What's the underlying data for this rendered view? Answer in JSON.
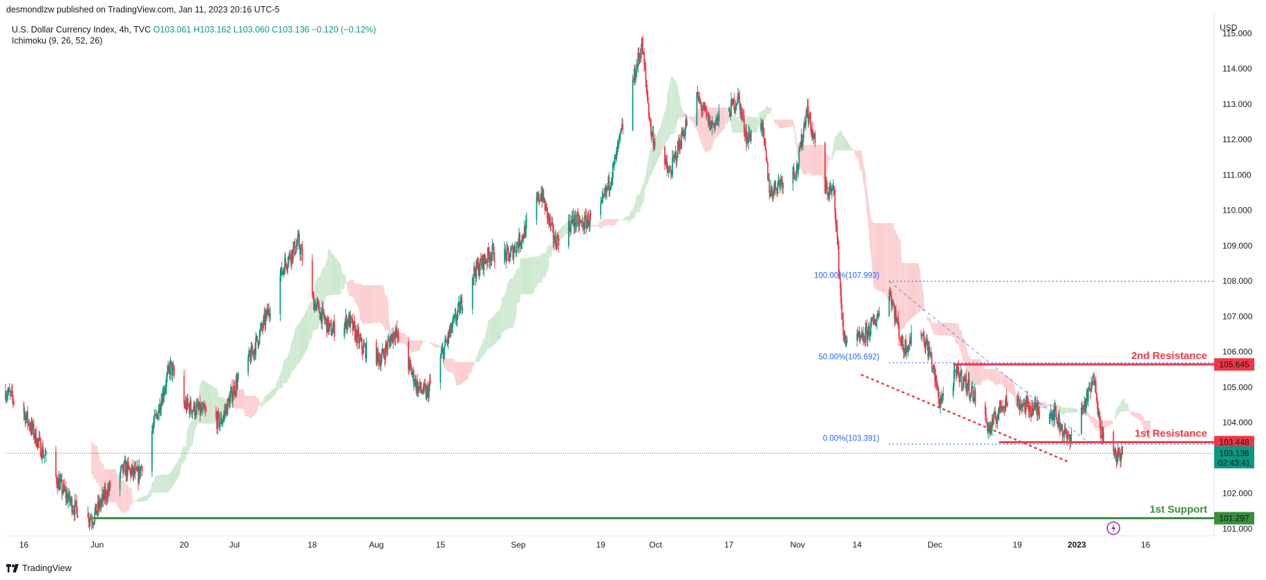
{
  "header": {
    "publisher_line": "desmondlzw published on TradingView.com, Jan 11, 2023 20:16 UTC-5"
  },
  "legend": {
    "symbol_line": "U.S. Dollar Currency Index, 4h, TVC",
    "ohlc": "O103.061  H103.162  L103.060  C103.136  −0.120 (−0.12%)",
    "indicator": "Ichimoku (9, 26, 52, 26)"
  },
  "footer": {
    "brand": "TradingView"
  },
  "chart_data": {
    "type": "candlestick",
    "currency": "USD",
    "ylim": [
      100.8,
      115.4
    ],
    "y_ticks": [
      101,
      102,
      103,
      104,
      105,
      106,
      107,
      108,
      109,
      110,
      111,
      112,
      113,
      114,
      115
    ],
    "y_tick_labels": [
      "101.000",
      "102.000",
      "103.000",
      "104.000",
      "105.000",
      "106.000",
      "107.000",
      "108.000",
      "109.000",
      "110.000",
      "111.000",
      "112.000",
      "113.000",
      "114.000",
      "115.000"
    ],
    "x_tick_labels": [
      "16",
      "Jun",
      "20",
      "Jul",
      "18",
      "Aug",
      "15",
      "Sep",
      "19",
      "Oct",
      "17",
      "Nov",
      "14",
      "Dec",
      "19",
      "2023",
      "16"
    ],
    "x_tick_dates": [
      "2022-05-16",
      "2022-06-01",
      "2022-06-20",
      "2022-07-01",
      "2022-07-18",
      "2022-08-01",
      "2022-08-15",
      "2022-09-01",
      "2022-09-19",
      "2022-10-01",
      "2022-10-17",
      "2022-11-01",
      "2022-11-14",
      "2022-12-01",
      "2022-12-19",
      "2023-01-01",
      "2023-01-16"
    ],
    "x_range": [
      "2022-05-12",
      "2023-01-31"
    ],
    "price_path": [
      [
        "2022-05-12",
        104.9
      ],
      [
        "2022-05-16",
        104.3
      ],
      [
        "2022-05-20",
        103.2
      ],
      [
        "2022-05-24",
        102.2
      ],
      [
        "2022-05-27",
        101.6
      ],
      [
        "2022-05-31",
        101.3
      ],
      [
        "2022-06-03",
        102.0
      ],
      [
        "2022-06-07",
        102.7
      ],
      [
        "2022-06-10",
        102.5
      ],
      [
        "2022-06-14",
        104.2
      ],
      [
        "2022-06-17",
        105.6
      ],
      [
        "2022-06-20",
        104.5
      ],
      [
        "2022-06-24",
        104.3
      ],
      [
        "2022-06-28",
        104.0
      ],
      [
        "2022-07-01",
        105.0
      ],
      [
        "2022-07-05",
        106.0
      ],
      [
        "2022-07-08",
        107.0
      ],
      [
        "2022-07-12",
        108.5
      ],
      [
        "2022-07-15",
        109.1
      ],
      [
        "2022-07-18",
        107.5
      ],
      [
        "2022-07-22",
        106.6
      ],
      [
        "2022-07-26",
        106.9
      ],
      [
        "2022-07-29",
        106.1
      ],
      [
        "2022-08-02",
        105.8
      ],
      [
        "2022-08-05",
        106.6
      ],
      [
        "2022-08-10",
        105.0
      ],
      [
        "2022-08-12",
        104.8
      ],
      [
        "2022-08-17",
        106.5
      ],
      [
        "2022-08-22",
        108.2
      ],
      [
        "2022-08-26",
        108.8
      ],
      [
        "2022-08-30",
        108.7
      ],
      [
        "2022-09-02",
        109.3
      ],
      [
        "2022-09-06",
        110.5
      ],
      [
        "2022-09-09",
        109.1
      ],
      [
        "2022-09-13",
        109.7
      ],
      [
        "2022-09-15",
        109.6
      ],
      [
        "2022-09-19",
        110.0
      ],
      [
        "2022-09-22",
        111.3
      ],
      [
        "2022-09-26",
        113.6
      ],
      [
        "2022-09-28",
        114.7
      ],
      [
        "2022-09-30",
        112.2
      ],
      [
        "2022-10-04",
        111.0
      ],
      [
        "2022-10-07",
        112.2
      ],
      [
        "2022-10-10",
        113.2
      ],
      [
        "2022-10-13",
        112.4
      ],
      [
        "2022-10-17",
        112.8
      ],
      [
        "2022-10-19",
        113.2
      ],
      [
        "2022-10-21",
        112.0
      ],
      [
        "2022-10-24",
        112.6
      ],
      [
        "2022-10-26",
        110.5
      ],
      [
        "2022-10-28",
        110.8
      ],
      [
        "2022-11-01",
        111.2
      ],
      [
        "2022-11-03",
        112.9
      ],
      [
        "2022-11-07",
        110.6
      ],
      [
        "2022-11-09",
        110.5
      ],
      [
        "2022-11-11",
        106.4
      ],
      [
        "2022-11-15",
        106.3
      ],
      [
        "2022-11-18",
        106.9
      ],
      [
        "2022-11-21",
        107.8
      ],
      [
        "2022-11-24",
        106.1
      ],
      [
        "2022-11-28",
        106.6
      ],
      [
        "2022-11-30",
        105.9
      ],
      [
        "2022-12-02",
        104.6
      ],
      [
        "2022-12-06",
        105.4
      ],
      [
        "2022-12-09",
        104.9
      ],
      [
        "2022-12-13",
        103.8
      ],
      [
        "2022-12-16",
        104.6
      ],
      [
        "2022-12-19",
        104.6
      ],
      [
        "2022-12-22",
        104.4
      ],
      [
        "2022-12-27",
        104.3
      ],
      [
        "2022-12-30",
        103.5
      ],
      [
        "2023-01-03",
        104.6
      ],
      [
        "2023-01-05",
        105.3
      ],
      [
        "2023-01-06",
        103.9
      ],
      [
        "2023-01-09",
        103.0
      ],
      [
        "2023-01-11",
        103.14
      ]
    ],
    "current_price": {
      "value": "103.136",
      "timer": "02:43:41"
    },
    "levels": [
      {
        "name": "2nd Resistance",
        "price": 105.645,
        "price_label": "105.645",
        "color": "#f23645",
        "start": "2022-12-05"
      },
      {
        "name": "1st Resistance",
        "price": 103.448,
        "price_label": "103.448",
        "color": "#f23645",
        "start": "2022-12-15"
      },
      {
        "name": "1st Support",
        "price": 101.297,
        "price_label": "101.297",
        "color": "#388e3c",
        "start": "2022-05-31"
      }
    ],
    "fibonacci": [
      {
        "label": "100.00%(107.993)",
        "price": 107.993
      },
      {
        "label": "50.00%(105.692)",
        "price": 105.692
      },
      {
        "label": "0.00%(103.391)",
        "price": 103.391
      }
    ],
    "fib_start": "2022-11-21",
    "trendline": {
      "from": [
        "2022-11-15",
        105.35
      ],
      "to": [
        "2022-12-30",
        102.9
      ],
      "color": "#f23645"
    },
    "fib_trend": {
      "from": [
        "2022-11-21",
        107.99
      ],
      "to": [
        "2023-01-04",
        103.39
      ]
    },
    "colors": {
      "up": "#089981",
      "down": "#f23645",
      "cloud_bull": "#cfe9d1",
      "cloud_bear": "#fbcfd1",
      "fib": "#2962ff",
      "current": "#089981"
    }
  }
}
